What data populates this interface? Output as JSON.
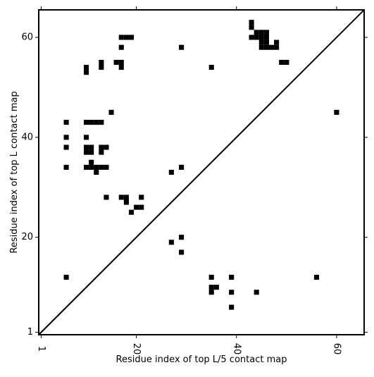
{
  "chart_data": {
    "type": "scatter",
    "marker": "square",
    "xlabel": "Residue index of top L/5 contact map",
    "ylabel": "Residue index of top L contact map",
    "xlim": [
      0.5,
      65.5
    ],
    "ylim": [
      0.5,
      65.5
    ],
    "xticks": [
      1,
      20,
      40,
      60
    ],
    "yticks": [
      1,
      20,
      40,
      60
    ],
    "xtick_labels": [
      "1",
      "20",
      "40",
      "60"
    ],
    "ytick_labels": [
      "1",
      "20",
      "40",
      "60"
    ],
    "xtick_rotation": "vertical",
    "diagonal_line": true,
    "grid": false,
    "color": "#000000",
    "points": [
      [
        43,
        63
      ],
      [
        43,
        62
      ],
      [
        44,
        61
      ],
      [
        45,
        61
      ],
      [
        46,
        61
      ],
      [
        43,
        60
      ],
      [
        44,
        60
      ],
      [
        45,
        60
      ],
      [
        46,
        60
      ],
      [
        45,
        59
      ],
      [
        46,
        59
      ],
      [
        48,
        59
      ],
      [
        45,
        58
      ],
      [
        46,
        58
      ],
      [
        47,
        58
      ],
      [
        48,
        58
      ],
      [
        49,
        55
      ],
      [
        50,
        55
      ],
      [
        17,
        60
      ],
      [
        18,
        60
      ],
      [
        19,
        60
      ],
      [
        17,
        58
      ],
      [
        29,
        58
      ],
      [
        10,
        54
      ],
      [
        10,
        53
      ],
      [
        13,
        55
      ],
      [
        13,
        54
      ],
      [
        16,
        55
      ],
      [
        17,
        55
      ],
      [
        17,
        54
      ],
      [
        35,
        54
      ],
      [
        15,
        45
      ],
      [
        60,
        45
      ],
      [
        6,
        43
      ],
      [
        10,
        43
      ],
      [
        11,
        43
      ],
      [
        12,
        43
      ],
      [
        13,
        43
      ],
      [
        6,
        40
      ],
      [
        10,
        40
      ],
      [
        6,
        38
      ],
      [
        10,
        38
      ],
      [
        11,
        38
      ],
      [
        13,
        38
      ],
      [
        14,
        38
      ],
      [
        10,
        37
      ],
      [
        11,
        37
      ],
      [
        13,
        37
      ],
      [
        11,
        35
      ],
      [
        6,
        34
      ],
      [
        10,
        34
      ],
      [
        11,
        34
      ],
      [
        12,
        34
      ],
      [
        13,
        34
      ],
      [
        14,
        34
      ],
      [
        29,
        34
      ],
      [
        12,
        33
      ],
      [
        27,
        33
      ],
      [
        14,
        28
      ],
      [
        17,
        28
      ],
      [
        18,
        28
      ],
      [
        21,
        28
      ],
      [
        18,
        27
      ],
      [
        20,
        26
      ],
      [
        21,
        26
      ],
      [
        19,
        25
      ],
      [
        29,
        20
      ],
      [
        27,
        19
      ],
      [
        29,
        17
      ],
      [
        6,
        12
      ],
      [
        35,
        12
      ],
      [
        39,
        12
      ],
      [
        56,
        12
      ],
      [
        35,
        10
      ],
      [
        36,
        10
      ],
      [
        35,
        9
      ],
      [
        39,
        9
      ],
      [
        44,
        9
      ],
      [
        39,
        6
      ]
    ]
  }
}
